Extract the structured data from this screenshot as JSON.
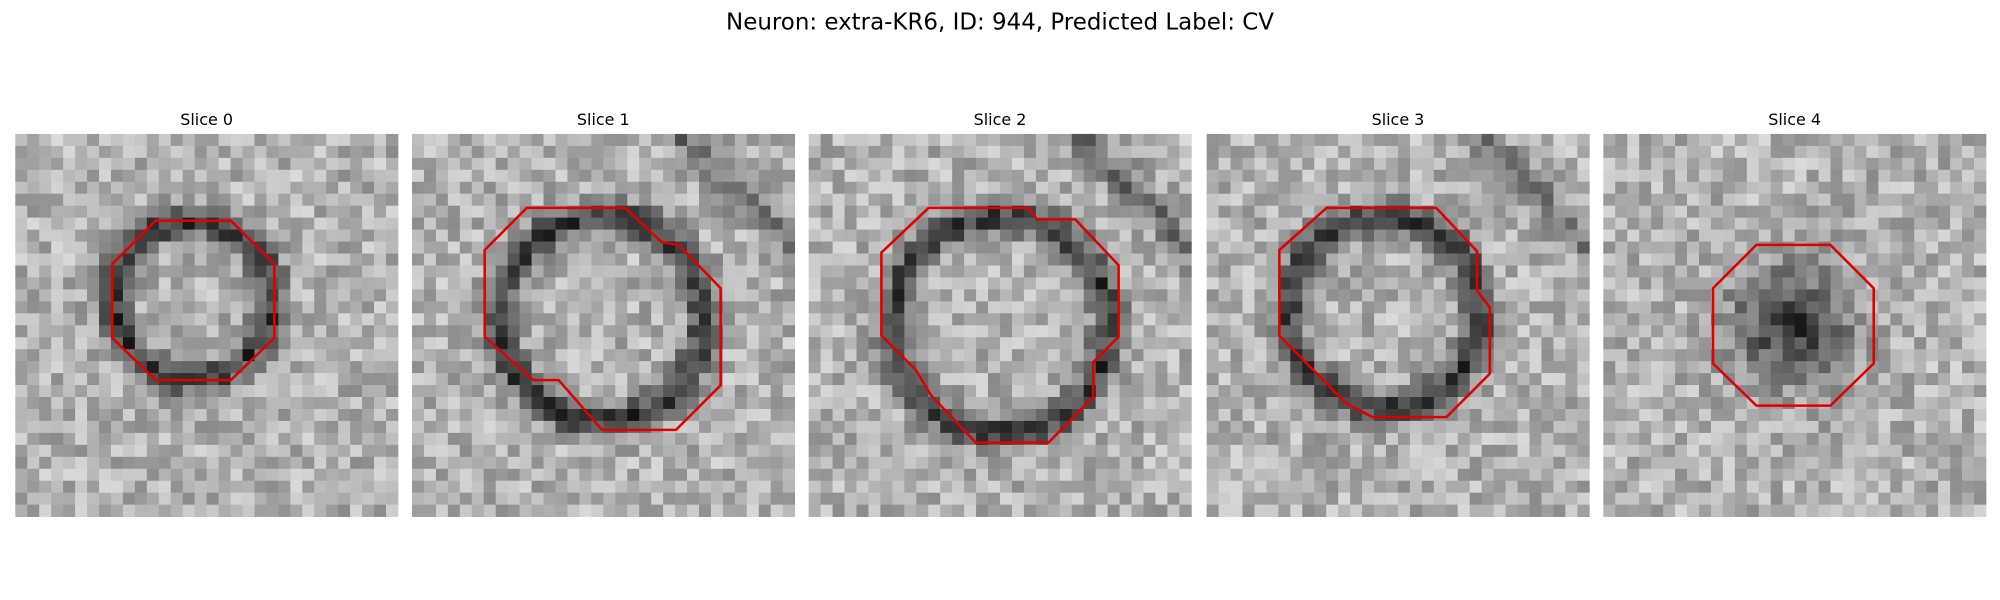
{
  "title": "Neuron: extra-KR6, ID: 944, Predicted Label: CV",
  "panels": [
    {
      "title": "Slice 0"
    },
    {
      "title": "Slice 1"
    },
    {
      "title": "Slice 2"
    },
    {
      "title": "Slice 3"
    },
    {
      "title": "Slice 4"
    }
  ]
}
